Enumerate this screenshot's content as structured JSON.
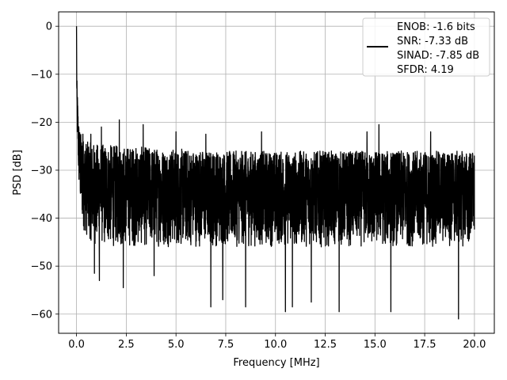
{
  "chart_data": {
    "type": "line",
    "title": "",
    "xlabel": "Frequency [MHz]",
    "ylabel": "PSD [dB]",
    "xlim": [
      -0.9,
      21.0
    ],
    "ylim": [
      -64.0,
      3.0
    ],
    "x_ticks": [
      0.0,
      2.5,
      5.0,
      7.5,
      10.0,
      12.5,
      15.0,
      17.5,
      20.0
    ],
    "x_tick_labels": [
      "0.0",
      "2.5",
      "5.0",
      "7.5",
      "10.0",
      "12.5",
      "15.0",
      "17.5",
      "20.0"
    ],
    "y_ticks": [
      0,
      -10,
      -20,
      -30,
      -40,
      -50,
      -60
    ],
    "y_tick_labels": [
      "0",
      "−10",
      "−20",
      "−30",
      "−40",
      "−50",
      "−60"
    ],
    "grid": true,
    "legend_position": "top-right",
    "series": [
      {
        "name": "ENOB: -1.6 bits\nSNR: -7.33 dB\nSINAD: -7.85 dB\nSFDR: 4.19",
        "color": "#000000",
        "x": [
          0.0,
          0.02,
          0.05,
          0.08,
          0.1,
          0.15,
          0.2,
          0.3,
          0.5,
          1.0,
          2.5,
          5.0,
          7.5,
          10.0,
          12.5,
          15.0,
          17.5,
          20.0
        ],
        "envelope_max": [
          0.0,
          -11.0,
          -14.0,
          -17.0,
          -19.0,
          -21.0,
          -22.0,
          -23.0,
          -24.0,
          -24.5,
          -25.0,
          -25.5,
          -26.0,
          -26.0,
          -26.0,
          -26.0,
          -26.0,
          -26.0
        ],
        "envelope_min": [
          -7.0,
          -22.0,
          -26.0,
          -30.0,
          -33.0,
          -36.0,
          -39.0,
          -42.0,
          -44.0,
          -46.0,
          -46.0,
          -46.0,
          -46.0,
          -46.0,
          -46.0,
          -46.0,
          -46.0,
          -46.0
        ],
        "mean": [
          0.0,
          -16.0,
          -20.0,
          -23.0,
          -26.0,
          -28.0,
          -30.0,
          -32.0,
          -33.0,
          -34.0,
          -35.0,
          -35.5,
          -35.5,
          -35.5,
          -35.5,
          -35.5,
          -35.5,
          -35.5
        ],
        "peaks": [
          {
            "x": 0.32,
            "y": -22.5
          },
          {
            "x": 0.72,
            "y": -22.5
          },
          {
            "x": 1.25,
            "y": -21.0
          },
          {
            "x": 2.15,
            "y": -19.5
          },
          {
            "x": 3.35,
            "y": -20.5
          },
          {
            "x": 5.0,
            "y": -22.0
          },
          {
            "x": 6.5,
            "y": -22.5
          },
          {
            "x": 9.3,
            "y": -22.0
          },
          {
            "x": 14.6,
            "y": -22.0
          },
          {
            "x": 15.2,
            "y": -20.5
          },
          {
            "x": 17.8,
            "y": -22.0
          }
        ],
        "dips": [
          {
            "x": 0.9,
            "y": -51.5
          },
          {
            "x": 1.15,
            "y": -53.0
          },
          {
            "x": 2.35,
            "y": -54.5
          },
          {
            "x": 3.9,
            "y": -52.0
          },
          {
            "x": 6.75,
            "y": -58.5
          },
          {
            "x": 7.35,
            "y": -57.0
          },
          {
            "x": 8.5,
            "y": -58.5
          },
          {
            "x": 10.5,
            "y": -59.5
          },
          {
            "x": 10.85,
            "y": -58.5
          },
          {
            "x": 11.8,
            "y": -57.5
          },
          {
            "x": 13.2,
            "y": -59.5
          },
          {
            "x": 15.8,
            "y": -59.5
          },
          {
            "x": 19.2,
            "y": -61.0
          }
        ],
        "representative_values_range": [
          -61.0,
          0.0
        ]
      }
    ]
  }
}
